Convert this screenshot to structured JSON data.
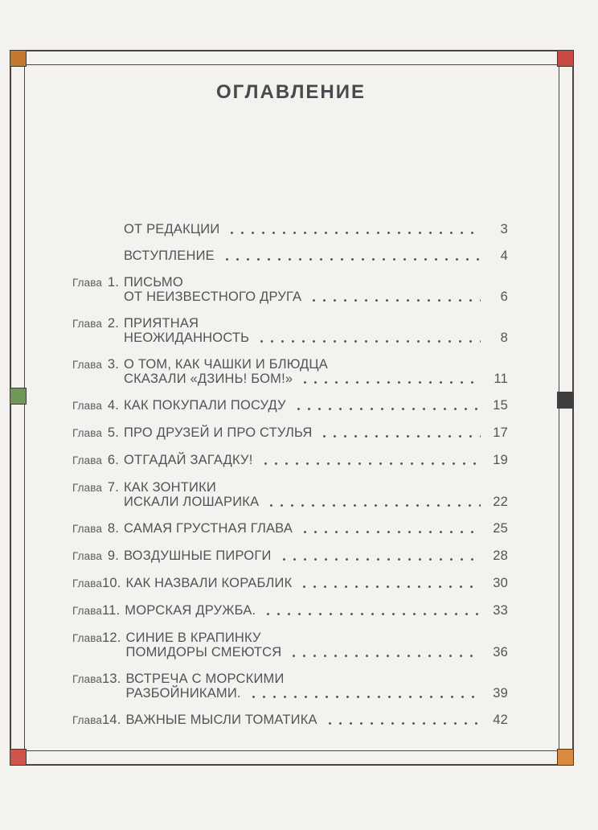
{
  "page": {
    "title": "ОГЛАВЛЕНИЕ"
  },
  "toc": {
    "entries": [
      {
        "label": "",
        "num": "",
        "lines": [
          "ОТ РЕДАКЦИИ"
        ],
        "page": "3"
      },
      {
        "label": "",
        "num": "",
        "lines": [
          "ВСТУПЛЕНИЕ"
        ],
        "page": "4"
      },
      {
        "label": "Глава",
        "num": "1.",
        "lines": [
          "ПИСЬМО",
          "ОТ НЕИЗВЕСТНОГО ДРУГА"
        ],
        "page": "6"
      },
      {
        "label": "Глава",
        "num": "2.",
        "lines": [
          "ПРИЯТНАЯ",
          "НЕОЖИДАННОСТЬ"
        ],
        "page": "8"
      },
      {
        "label": "Глава",
        "num": "3.",
        "lines": [
          "О ТОМ, КАК ЧАШКИ И БЛЮДЦА",
          "СКАЗАЛИ «ДЗИНЬ! БОМ!»"
        ],
        "page": "11"
      },
      {
        "label": "Глава",
        "num": "4.",
        "lines": [
          "КАК ПОКУПАЛИ ПОСУДУ"
        ],
        "page": "15"
      },
      {
        "label": "Глава",
        "num": "5.",
        "lines": [
          "ПРО ДРУЗЕЙ И ПРО СТУЛЬЯ"
        ],
        "page": "17"
      },
      {
        "label": "Глава",
        "num": "6.",
        "lines": [
          "ОТГАДАЙ ЗАГАДКУ!"
        ],
        "page": "19"
      },
      {
        "label": "Глава",
        "num": "7.",
        "lines": [
          "КАК ЗОНТИКИ",
          "ИСКАЛИ ЛОШАРИКА"
        ],
        "page": "22"
      },
      {
        "label": "Глава",
        "num": "8.",
        "lines": [
          "САМАЯ ГРУСТНАЯ ГЛАВА"
        ],
        "page": "25"
      },
      {
        "label": "Глава",
        "num": "9.",
        "lines": [
          "ВОЗДУШНЫЕ ПИРОГИ"
        ],
        "page": "28"
      },
      {
        "label": "Глава",
        "num": "10.",
        "lines": [
          "КАК НАЗВАЛИ КОРАБЛИК"
        ],
        "page": "30"
      },
      {
        "label": "Глава",
        "num": "11.",
        "lines": [
          "МОРСКАЯ ДРУЖБА."
        ],
        "page": "33"
      },
      {
        "label": "Глава",
        "num": "12.",
        "lines": [
          "СИНИЕ В КРАПИНКУ",
          "ПОМИДОРЫ СМЕЮТСЯ"
        ],
        "page": "36"
      },
      {
        "label": "Глава",
        "num": "13.",
        "lines": [
          "ВСТРЕЧА С МОРСКИМИ",
          "РАЗБОЙНИКАМИ."
        ],
        "page": "39"
      },
      {
        "label": "Глава",
        "num": "14.",
        "lines": [
          "ВАЖНЫЕ МЫСЛИ ТОМАТИКА"
        ],
        "page": "42"
      }
    ]
  },
  "decorations": {
    "paper_color": "#f3f2ef",
    "frame_color": "#4a453e",
    "squares": [
      {
        "position": "top-left",
        "color": "#c8772e"
      },
      {
        "position": "top-right",
        "color": "#c84b43"
      },
      {
        "position": "middle-left",
        "color": "#6d9857"
      },
      {
        "position": "middle-right",
        "color": "#403e40"
      },
      {
        "position": "bottom-left",
        "color": "#d0544b"
      },
      {
        "position": "bottom-right",
        "color": "#d98b3d"
      }
    ]
  }
}
